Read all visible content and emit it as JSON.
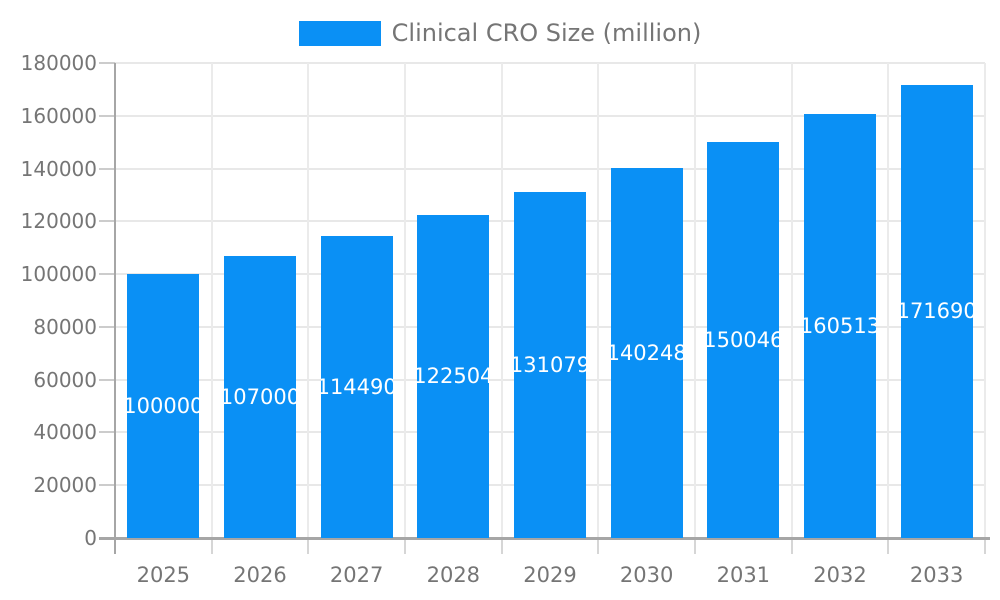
{
  "chart_data": {
    "type": "bar",
    "title": "",
    "legend": {
      "label": "Clinical CRO Size (million)",
      "position": "top"
    },
    "categories": [
      "2025",
      "2026",
      "2027",
      "2028",
      "2029",
      "2030",
      "2031",
      "2032",
      "2033"
    ],
    "values": [
      100000,
      107000,
      114490,
      122504,
      131079,
      140248,
      150046,
      160513,
      171690
    ],
    "bar_labels": [
      "100000",
      "107000",
      "114490",
      "122504",
      "131079",
      "140248",
      "150046",
      "160513",
      "171690"
    ],
    "xlabel": "",
    "ylabel": "",
    "ylim": [
      0,
      180000
    ],
    "ytick_step": 20000,
    "ytick_labels": [
      "0",
      "20000",
      "40000",
      "60000",
      "80000",
      "100000",
      "120000",
      "140000",
      "160000",
      "180000"
    ],
    "grid": true,
    "legend_position": "top",
    "colors": {
      "bar": "#0a90f5",
      "bar_label_text": "#ffffff",
      "axis_text": "#757575",
      "grid_line": "#e8e8e8",
      "axis_line": "#a6a6a6",
      "tick_line": "#cccccc",
      "background": "#ffffff"
    }
  }
}
